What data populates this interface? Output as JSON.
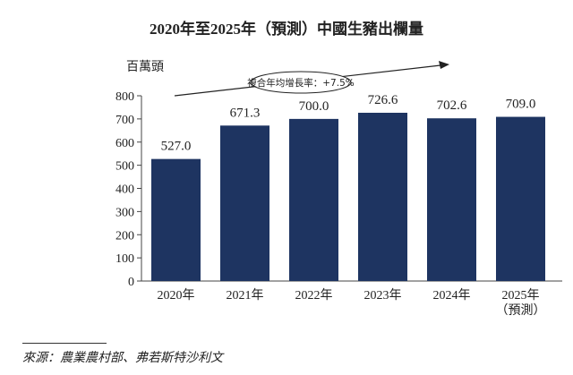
{
  "chart_data": {
    "type": "bar",
    "title": "2020年至2025年（預測）中國生豬出欄量",
    "ylabel": "百萬頭",
    "xlabel": "",
    "categories": [
      "2020年",
      "2021年",
      "2022年",
      "2023年",
      "2024年",
      "2025年"
    ],
    "category_sublabels": [
      "",
      "",
      "",
      "",
      "",
      "（預測）"
    ],
    "values": [
      527.0,
      671.3,
      700.0,
      726.6,
      702.6,
      709.0
    ],
    "data_labels": [
      "527.0",
      "671.3",
      "700.0",
      "726.6",
      "702.6",
      "709.0"
    ],
    "ylim": [
      0,
      800
    ],
    "yticks": [
      0,
      100,
      200,
      300,
      400,
      500,
      600,
      700,
      800
    ],
    "grid": false,
    "annotation": "複合年均增長率：+7.5%",
    "bar_color": "#1e3461"
  },
  "source": "來源：農業農村部、弗若斯特沙利文"
}
